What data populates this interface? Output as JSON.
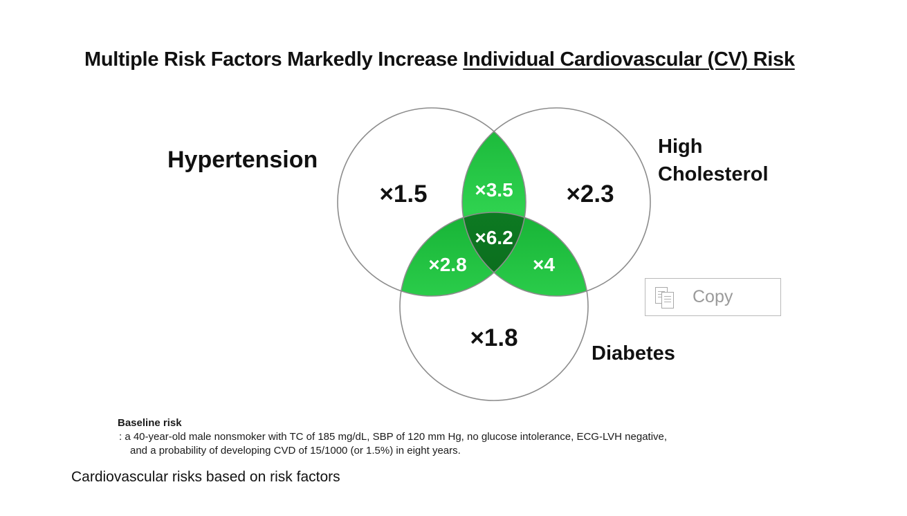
{
  "title": {
    "prefix": "Multiple Risk Factors Markedly Increase ",
    "underlined": "Individual Cardiovascular (CV) Risk"
  },
  "venn": {
    "sets": {
      "hypertension": "Hypertension",
      "cholesterol_line1": "High",
      "cholesterol_line2": "Cholesterol",
      "diabetes": "Diabetes"
    },
    "regions": {
      "hypertension_only": "×1.5",
      "cholesterol_only": "×2.3",
      "diabetes_only": "×1.8",
      "hypertension_cholesterol": "×3.5",
      "hypertension_diabetes": "×2.8",
      "cholesterol_diabetes": "×4",
      "all_three": "×6.2"
    },
    "colors": {
      "single_region": "#ffffff",
      "pair_region": "#1ec33e",
      "triple_region": "#0a6a1c",
      "outline": "#8c8c8c",
      "overlap_text": "#ffffff"
    }
  },
  "copy_button": {
    "label": "Copy",
    "icon": "copy-icon"
  },
  "baseline": {
    "heading": "Baseline risk",
    "line1": ": a 40-year-old male nonsmoker with TC of 185 mg/dL, SBP of 120 mm Hg, no glucose intolerance, ECG-LVH negative,",
    "line2": "and a probability of developing CVD of 15/1000 (or 1.5%) in eight years."
  },
  "caption": "Cardiovascular risks based on risk factors"
}
